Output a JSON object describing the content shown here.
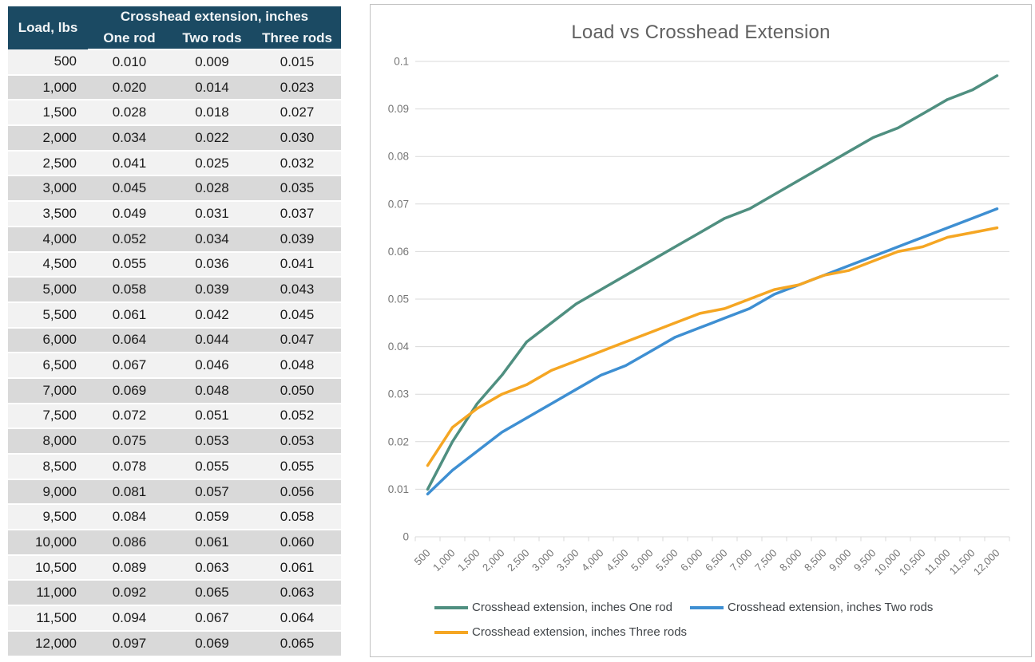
{
  "table": {
    "load_header": "Load, lbs",
    "group_header": "Crosshead extension, inches",
    "sub_headers": [
      "One rod",
      "Two rods",
      "Three rods"
    ],
    "rows": [
      [
        "500",
        "0.010",
        "0.009",
        "0.015"
      ],
      [
        "1,000",
        "0.020",
        "0.014",
        "0.023"
      ],
      [
        "1,500",
        "0.028",
        "0.018",
        "0.027"
      ],
      [
        "2,000",
        "0.034",
        "0.022",
        "0.030"
      ],
      [
        "2,500",
        "0.041",
        "0.025",
        "0.032"
      ],
      [
        "3,000",
        "0.045",
        "0.028",
        "0.035"
      ],
      [
        "3,500",
        "0.049",
        "0.031",
        "0.037"
      ],
      [
        "4,000",
        "0.052",
        "0.034",
        "0.039"
      ],
      [
        "4,500",
        "0.055",
        "0.036",
        "0.041"
      ],
      [
        "5,000",
        "0.058",
        "0.039",
        "0.043"
      ],
      [
        "5,500",
        "0.061",
        "0.042",
        "0.045"
      ],
      [
        "6,000",
        "0.064",
        "0.044",
        "0.047"
      ],
      [
        "6,500",
        "0.067",
        "0.046",
        "0.048"
      ],
      [
        "7,000",
        "0.069",
        "0.048",
        "0.050"
      ],
      [
        "7,500",
        "0.072",
        "0.051",
        "0.052"
      ],
      [
        "8,000",
        "0.075",
        "0.053",
        "0.053"
      ],
      [
        "8,500",
        "0.078",
        "0.055",
        "0.055"
      ],
      [
        "9,000",
        "0.081",
        "0.057",
        "0.056"
      ],
      [
        "9,500",
        "0.084",
        "0.059",
        "0.058"
      ],
      [
        "10,000",
        "0.086",
        "0.061",
        "0.060"
      ],
      [
        "10,500",
        "0.089",
        "0.063",
        "0.061"
      ],
      [
        "11,000",
        "0.092",
        "0.065",
        "0.063"
      ],
      [
        "11,500",
        "0.094",
        "0.067",
        "0.064"
      ],
      [
        "12,000",
        "0.097",
        "0.069",
        "0.065"
      ]
    ]
  },
  "chart_data": {
    "type": "line",
    "title": "Load vs Crosshead Extension",
    "xlabel": "",
    "ylabel": "",
    "categories": [
      "500",
      "1,000",
      "1,500",
      "2,000",
      "2,500",
      "3,000",
      "3,500",
      "4,000",
      "4,500",
      "5,000",
      "5,500",
      "6,000",
      "6,500",
      "7,000",
      "7,500",
      "8,000",
      "8,500",
      "9,000",
      "9,500",
      "10,000",
      "10,500",
      "11,000",
      "11,500",
      "12,000"
    ],
    "series": [
      {
        "name": "Crosshead extension, inches One rod",
        "color": "#4F8F80",
        "values": [
          0.01,
          0.02,
          0.028,
          0.034,
          0.041,
          0.045,
          0.049,
          0.052,
          0.055,
          0.058,
          0.061,
          0.064,
          0.067,
          0.069,
          0.072,
          0.075,
          0.078,
          0.081,
          0.084,
          0.086,
          0.089,
          0.092,
          0.094,
          0.097
        ]
      },
      {
        "name": "Crosshead extension, inches Two rods",
        "color": "#3E8FD2",
        "values": [
          0.009,
          0.014,
          0.018,
          0.022,
          0.025,
          0.028,
          0.031,
          0.034,
          0.036,
          0.039,
          0.042,
          0.044,
          0.046,
          0.048,
          0.051,
          0.053,
          0.055,
          0.057,
          0.059,
          0.061,
          0.063,
          0.065,
          0.067,
          0.069
        ]
      },
      {
        "name": "Crosshead extension, inches Three rods",
        "color": "#F5A623",
        "values": [
          0.015,
          0.023,
          0.027,
          0.03,
          0.032,
          0.035,
          0.037,
          0.039,
          0.041,
          0.043,
          0.045,
          0.047,
          0.048,
          0.05,
          0.052,
          0.053,
          0.055,
          0.056,
          0.058,
          0.06,
          0.061,
          0.063,
          0.064,
          0.065
        ]
      }
    ],
    "ylim": [
      0,
      0.1
    ],
    "y_ticks": [
      "0",
      "0.01",
      "0.02",
      "0.03",
      "0.04",
      "0.05",
      "0.06",
      "0.07",
      "0.08",
      "0.09",
      "0.1"
    ],
    "grid": true,
    "legend_position": "bottom"
  },
  "colors": {
    "table_header_bg": "#1b4a63",
    "table_row_light": "#f2f2f2",
    "table_row_dark": "#d9d9d9",
    "gridline": "#d9d9d9",
    "axis_text": "#757575",
    "title_text": "#616161",
    "chart_border": "#c2c2c2"
  }
}
